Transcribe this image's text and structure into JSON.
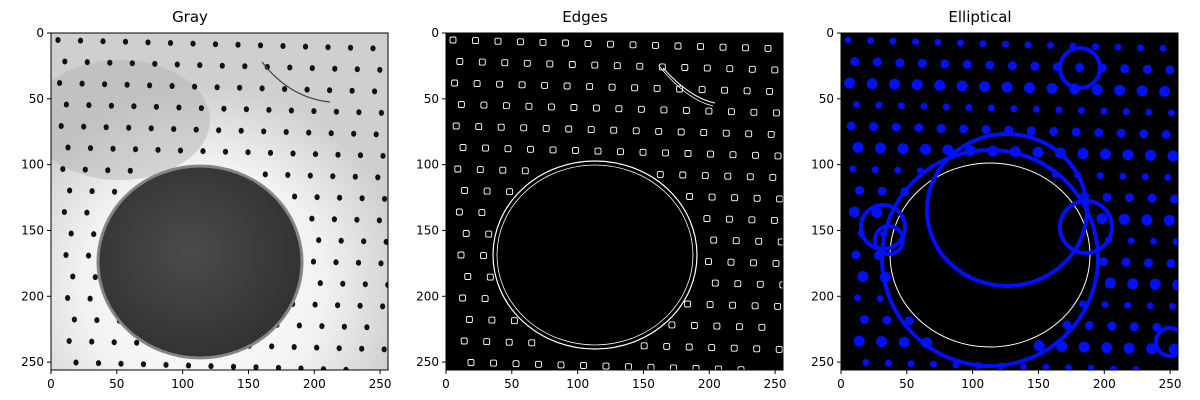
{
  "panels": [
    {
      "title": "Gray"
    },
    {
      "title": "Edges"
    },
    {
      "title": "Elliptical"
    }
  ],
  "axes": {
    "range": [
      0,
      256
    ],
    "x_ticks": [
      "0",
      "50",
      "100",
      "150",
      "200",
      "250"
    ],
    "y_ticks": [
      "0",
      "50",
      "100",
      "150",
      "200",
      "250"
    ],
    "y_inverted": true
  },
  "colors": {
    "marker": "#0010ff",
    "edge": "#ffffff",
    "background": "#000000"
  }
}
